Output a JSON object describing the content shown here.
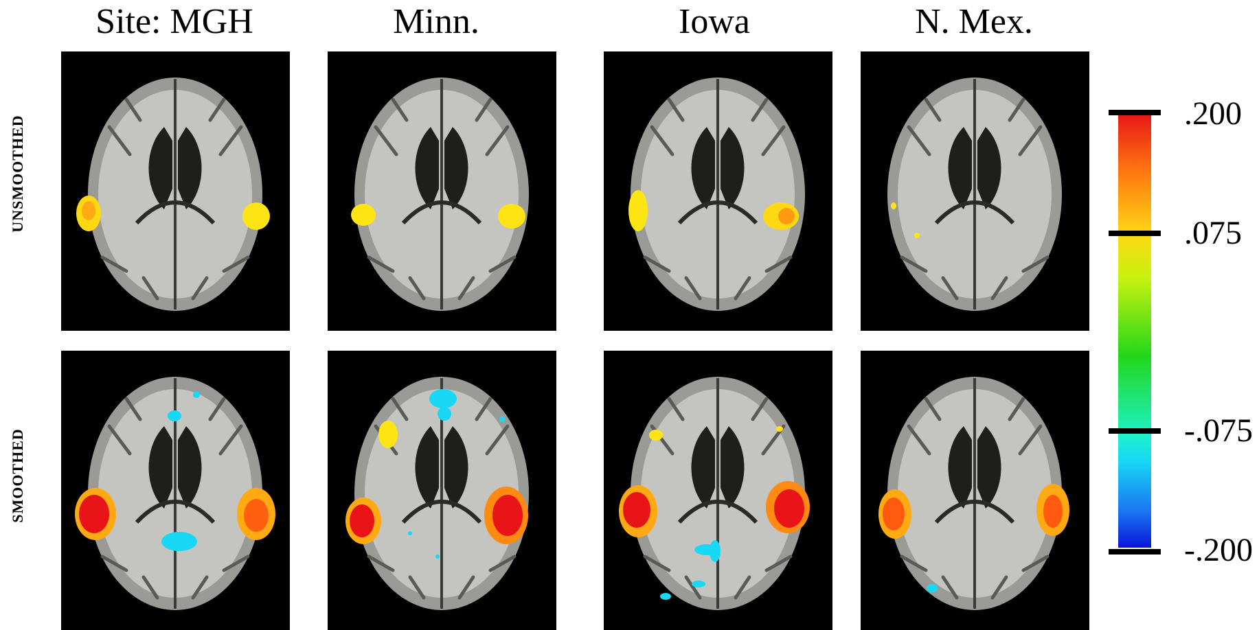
{
  "columns": [
    {
      "title": "Site: MGH"
    },
    {
      "title": "Minn."
    },
    {
      "title": "Iowa"
    },
    {
      "title": "N. Mex."
    }
  ],
  "rows": [
    {
      "label": "UNSMOOTHED"
    },
    {
      "label": "SMOOTHED"
    }
  ],
  "colorbar": {
    "ticks": [
      ".200",
      ".075",
      "-.075",
      "-.200"
    ],
    "range": [
      -0.2,
      0.2
    ],
    "colors": {
      "max": "#e81418",
      "orange": "#ff7a10",
      "yellow": "#ffd814",
      "green": "#22d61a",
      "cyan": "#18d8f5",
      "min": "#0a14d8"
    }
  }
}
